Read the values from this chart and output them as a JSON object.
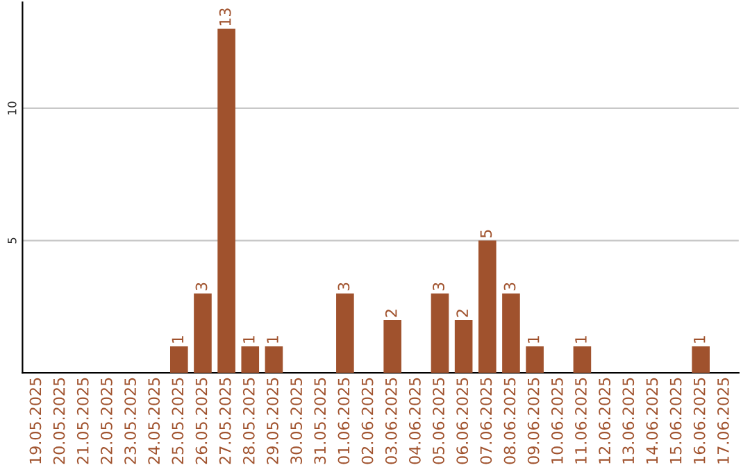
{
  "chart_data": {
    "type": "bar",
    "categories": [
      "19.05.2025",
      "20.05.2025",
      "21.05.2025",
      "22.05.2025",
      "23.05.2025",
      "24.05.2025",
      "25.05.2025",
      "26.05.2025",
      "27.05.2025",
      "28.05.2025",
      "29.05.2025",
      "30.05.2025",
      "31.05.2025",
      "01.06.2025",
      "02.06.2025",
      "03.06.2025",
      "04.06.2025",
      "05.06.2025",
      "06.06.2025",
      "07.06.2025",
      "08.06.2025",
      "09.06.2025",
      "10.06.2025",
      "11.06.2025",
      "12.06.2025",
      "13.06.2025",
      "14.06.2025",
      "15.06.2025",
      "16.06.2025",
      "17.06.2025"
    ],
    "values": [
      0,
      0,
      0,
      0,
      0,
      0,
      1,
      3,
      13,
      1,
      1,
      0,
      0,
      3,
      0,
      2,
      0,
      3,
      2,
      5,
      3,
      1,
      0,
      1,
      0,
      0,
      0,
      0,
      1,
      0
    ],
    "value_labels": [
      null,
      null,
      null,
      null,
      null,
      null,
      "1",
      "3",
      "13",
      "1",
      "1",
      null,
      null,
      "3",
      null,
      "2",
      null,
      "3",
      "2",
      "5",
      "3",
      "1",
      null,
      "1",
      null,
      null,
      null,
      null,
      "1",
      null
    ],
    "color": "#a0522d",
    "ylim": [
      0,
      14
    ],
    "yticks": [
      5,
      10
    ],
    "grid": "y"
  }
}
